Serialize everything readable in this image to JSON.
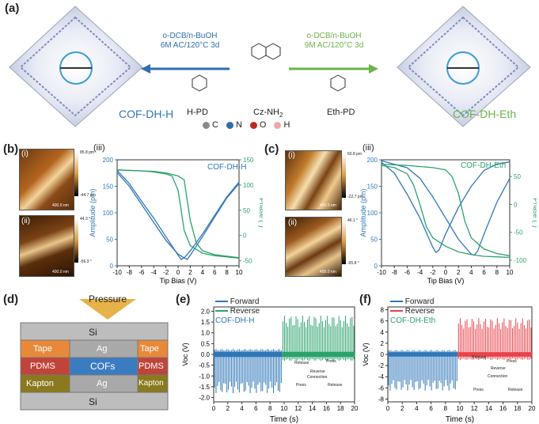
{
  "panel_a": {
    "label": "(a)",
    "left_cof": "COF-DH-H",
    "right_cof": "COF-DH-Eth",
    "left_cond1": "o-DCB/n-BuOH",
    "left_cond2": "6M AC/120°C 3d",
    "right_cond1": "o-DCB/n-BuOH",
    "right_cond2": "9M AC/120°C 3d",
    "mon_left": "H-PD",
    "mon_center": "Cz-NH",
    "mon_center_sub": "2",
    "mon_right": "Eth-PD",
    "legend": [
      "C",
      "N",
      "O",
      "H"
    ],
    "legend_colors": [
      "#8a8a8a",
      "#2f6db3",
      "#c0281d",
      "#f2a7a7"
    ]
  },
  "panel_b": {
    "label": "(b)",
    "sub_i": "(i)",
    "sub_ii": "(ii)",
    "sub_iii": "(iii)",
    "cb1_top": "85.8 pm",
    "cb1_bot": "-44.7 pm",
    "cb2_top": "44.3 °",
    "cb2_bot": "-56.3 °",
    "scale": "400.0 nm",
    "legend": "COF-DH-H"
  },
  "panel_c": {
    "label": "(c)",
    "sub_i": "(i)",
    "sub_ii": "(ii)",
    "sub_iii": "(iii)",
    "cb1_top": "60.8 pm",
    "cb1_bot": "-22.7 pm",
    "cb2_top": "46.1 °",
    "cb2_bot": "-65.8 °",
    "scale": "400.0 nm",
    "legend": "COF-DH-Eth"
  },
  "panel_d": {
    "label": "(d)",
    "pressure": "Pressure",
    "layers": {
      "si_top": "Si",
      "tape_l": "Tape",
      "ag_top": "Ag",
      "tape_r": "Tape",
      "pdms_l": "PDMS",
      "cofs": "COFs",
      "pdms_r": "PDMS",
      "kapton_l": "Kapton",
      "ag_bot": "Ag",
      "kapton_r": "Kapton",
      "si_bot": "Si"
    }
  },
  "panel_e": {
    "label": "(e)",
    "legend_forward": "Forward",
    "legend_reverse": "Reverse",
    "cof": "COF-DH-H",
    "inset_release": "Release",
    "inset_press": "Press",
    "inset_reverse": "Reverse",
    "inset_connection": "Connection",
    "inset_press2": "Press",
    "inset_release2": "Release"
  },
  "panel_f": {
    "label": "(f)",
    "legend_forward": "Forward",
    "legend_reverse": "Reverse",
    "cof": "COF-DH-Eth",
    "inset_release": "Release",
    "inset_press": "Press",
    "inset_reverse": "Reverse",
    "inset_connection": "Connection",
    "inset_press2": "Press",
    "inset_release2": "Release"
  },
  "colors": {
    "blue": "#2f77b8",
    "green": "#2aa36b",
    "red": "#e8424a",
    "accent_text_green": "#6bb34a"
  },
  "chart_data": [
    {
      "id": "b_iii",
      "type": "line",
      "xlabel": "Tip Bias (V)",
      "ylabel": "Amplitude (pm)",
      "y2label": "Phase (°)",
      "xlim": [
        -10,
        10
      ],
      "ylim": [
        0,
        200
      ],
      "y2lim": [
        -60,
        150
      ],
      "xticks": [
        -10,
        -8,
        -6,
        -4,
        -2,
        0,
        2,
        4,
        6,
        8,
        10
      ],
      "yticks": [
        0,
        50,
        100,
        150,
        200
      ],
      "y2ticks": [
        -50,
        0,
        50,
        100,
        150
      ],
      "amplitude_fwd": {
        "x": [
          -10,
          -8,
          -6,
          -4,
          -2,
          0,
          0.5,
          1,
          2,
          4,
          6,
          8,
          10
        ],
        "y": [
          180,
          155,
          122,
          90,
          55,
          20,
          12,
          15,
          28,
          60,
          95,
          130,
          158
        ]
      },
      "amplitude_rev": {
        "x": [
          -10,
          -8,
          -6,
          -4,
          -2,
          0,
          1,
          1.5,
          2,
          4,
          6,
          8,
          10
        ],
        "y": [
          176,
          150,
          116,
          82,
          48,
          22,
          15,
          12,
          20,
          55,
          92,
          128,
          155
        ]
      },
      "phase_fwd": {
        "x": [
          -10,
          -6,
          -4,
          -2,
          -1,
          0,
          0.5,
          1,
          2,
          4,
          6,
          10
        ],
        "y": [
          130,
          128,
          126,
          122,
          118,
          90,
          50,
          10,
          -20,
          -35,
          -40,
          -45
        ]
      },
      "phase_rev": {
        "x": [
          -10,
          -6,
          -4,
          -2,
          0,
          1,
          1.5,
          2,
          3,
          4,
          6,
          10
        ],
        "y": [
          130,
          128,
          127,
          124,
          118,
          110,
          70,
          30,
          -15,
          -30,
          -38,
          -44
        ]
      }
    },
    {
      "id": "c_iii",
      "type": "line",
      "xlabel": "Tip Bias (V)",
      "ylabel": "Amplitude (pm)",
      "y2label": "Phase (°)",
      "xlim": [
        -10,
        10
      ],
      "ylim": [
        0,
        200
      ],
      "y2lim": [
        -110,
        80
      ],
      "xticks": [
        -10,
        -8,
        -6,
        -4,
        -2,
        0,
        2,
        4,
        6,
        8,
        10
      ],
      "yticks": [
        0,
        50,
        100,
        150,
        200
      ],
      "y2ticks": [
        -100,
        -50,
        0,
        50
      ],
      "amplitude_fwd": {
        "x": [
          -10,
          -8,
          -6,
          -4,
          -2,
          -1.5,
          -1,
          0,
          2,
          4,
          6,
          8,
          10
        ],
        "y": [
          195,
          175,
          135,
          90,
          35,
          25,
          30,
          60,
          110,
          150,
          180,
          192,
          196
        ]
      },
      "amplitude_rev": {
        "x": [
          -10,
          -6,
          -4,
          -2,
          0,
          2,
          4,
          4.5,
          5,
          6,
          8,
          10
        ],
        "y": [
          198,
          185,
          165,
          130,
          90,
          50,
          22,
          20,
          28,
          60,
          120,
          165
        ]
      },
      "phase_fwd": {
        "x": [
          -10,
          -8,
          -6,
          -5,
          -4,
          -3,
          -2,
          0,
          2,
          4,
          6,
          10
        ],
        "y": [
          70,
          66,
          55,
          35,
          0,
          -40,
          -60,
          -75,
          -85,
          -90,
          -93,
          -95
        ]
      },
      "phase_rev": {
        "x": [
          -10,
          -6,
          -4,
          -2,
          0,
          1,
          2,
          3,
          4,
          6,
          8,
          10
        ],
        "y": [
          72,
          70,
          68,
          66,
          62,
          50,
          20,
          -30,
          -60,
          -80,
          -88,
          -92
        ]
      }
    },
    {
      "id": "e",
      "type": "line",
      "xlabel": "Time (s)",
      "ylabel": "Voc (V)",
      "xlim": [
        0,
        20
      ],
      "ylim": [
        -2.2,
        2.2
      ],
      "xticks": [
        0,
        2,
        4,
        6,
        8,
        10,
        12,
        14,
        16,
        18,
        20
      ],
      "yticks": [
        -2.0,
        -1.5,
        -1.0,
        -0.5,
        0.0,
        0.5,
        1.0,
        1.5,
        2.0
      ],
      "forward": {
        "x_range": [
          0,
          9.7
        ],
        "pulse_count": 44,
        "peak_pos_approx": 0.25,
        "peak_neg_approx": -1.8
      },
      "reverse": {
        "x_range": [
          9.7,
          20
        ],
        "pulse_count": 44,
        "peak_pos_approx": 1.8,
        "peak_neg_approx": -0.3
      }
    },
    {
      "id": "f",
      "type": "line",
      "xlabel": "Time (s)",
      "ylabel": "Voc (V)",
      "xlim": [
        0,
        20
      ],
      "ylim": [
        -8.5,
        8.5
      ],
      "xticks": [
        0,
        2,
        4,
        6,
        8,
        10,
        12,
        14,
        16,
        18,
        20
      ],
      "yticks": [
        -8,
        -6,
        -4,
        -2,
        0,
        2,
        4,
        6,
        8
      ],
      "forward": {
        "x_range": [
          0,
          9.7
        ],
        "pulse_count": 44,
        "peak_pos_approx": 0.8,
        "peak_neg_approx": -6.5
      },
      "reverse": {
        "x_range": [
          9.7,
          20
        ],
        "pulse_count": 44,
        "peak_pos_approx": 6.5,
        "peak_neg_approx": -1.0
      }
    }
  ]
}
